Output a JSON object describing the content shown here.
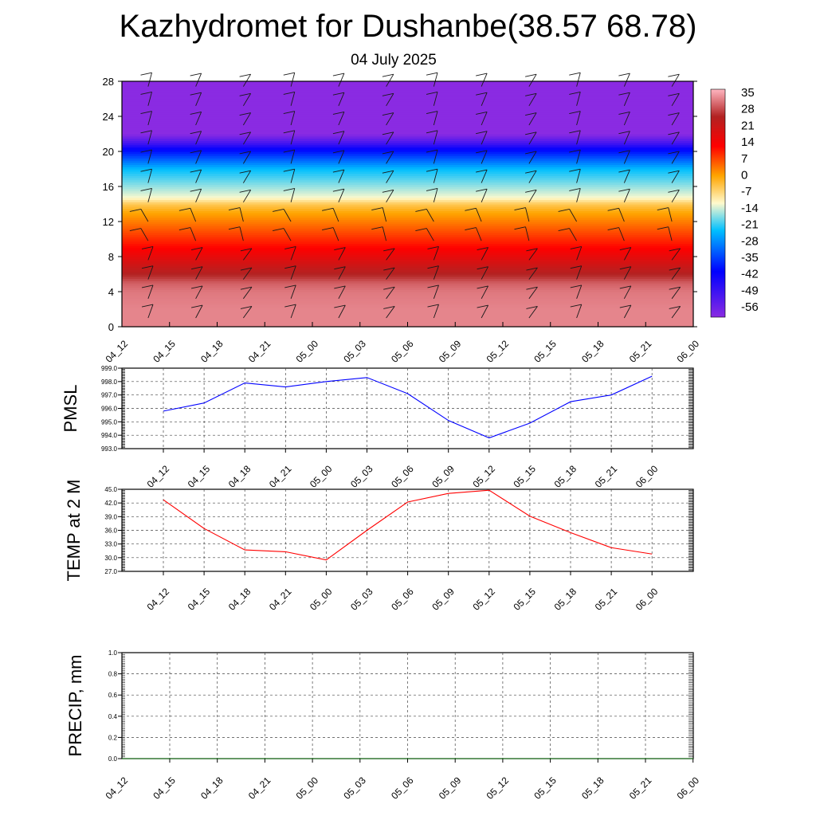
{
  "title": "Kazhydromet for Dushanbe(38.57 68.78)",
  "subtitle": "04 July 2025",
  "chart_data": [
    {
      "type": "heatmap",
      "description_of_axes": "time vs height",
      "x_categories": [
        "04_12",
        "04_15",
        "04_18",
        "04_21",
        "05_00",
        "05_03",
        "05_06",
        "05_09",
        "05_12",
        "05_15",
        "05_18",
        "05_21",
        "06_00"
      ],
      "y_ticks": [
        0,
        4,
        8,
        12,
        16,
        20,
        24,
        28
      ],
      "ylim": [
        0,
        28
      ],
      "colorbar_ticks": [
        35,
        28,
        21,
        14,
        7,
        0,
        -7,
        -14,
        -21,
        -28,
        -35,
        -42,
        -49,
        -56
      ],
      "colorbar_range": [
        -60,
        40
      ],
      "temperature_profile": {
        "heights": [
          0,
          2,
          4,
          5,
          6,
          7,
          8,
          9,
          10,
          11,
          12,
          13,
          14,
          15,
          16,
          17,
          18,
          19,
          20,
          21,
          22,
          28
        ],
        "values": [
          36,
          36,
          35,
          33,
          28,
          24,
          20,
          16,
          12,
          8,
          4,
          0,
          -4,
          -12,
          -18,
          -24,
          -30,
          -38,
          -46,
          -54,
          -60,
          -60
        ]
      },
      "colors": {
        "low": "#8a2be2",
        "mid_low": "#0000ff",
        "mid": "#00bfff",
        "neutral": "#fffacd",
        "warm": "#ffa500",
        "hot": "#ff0000",
        "very_hot": "#b22222",
        "max": "#ffb6c1"
      }
    },
    {
      "type": "line",
      "ylabel": "PMSL",
      "x": [
        "04_12",
        "04_15",
        "04_18",
        "04_21",
        "05_00",
        "05_03",
        "05_06",
        "05_09",
        "05_12",
        "05_15",
        "05_18",
        "05_21",
        "06_00"
      ],
      "values": [
        995.8,
        996.4,
        997.9,
        997.6,
        998.0,
        998.3,
        997.1,
        995.1,
        993.8,
        994.9,
        996.5,
        997.0,
        998.4
      ],
      "ylim": [
        993.0,
        999.0
      ],
      "y_ticks": [
        "993.0",
        "994.0",
        "995.0",
        "996.0",
        "997.0",
        "998.0",
        "999.0"
      ],
      "color": "#0000ff"
    },
    {
      "type": "line",
      "ylabel": "TEMP at 2 M",
      "x": [
        "04_12",
        "04_15",
        "04_18",
        "04_21",
        "05_00",
        "05_03",
        "05_06",
        "05_09",
        "05_12",
        "05_15",
        "05_18",
        "05_21",
        "06_00"
      ],
      "values": [
        42.7,
        36.4,
        31.7,
        31.3,
        29.5,
        36.0,
        42.2,
        44.1,
        44.8,
        39.1,
        35.5,
        32.2,
        30.8
      ],
      "ylim": [
        27.0,
        45.0
      ],
      "y_ticks": [
        "27.0",
        "30.0",
        "33.0",
        "36.0",
        "39.0",
        "42.0",
        "45.0"
      ],
      "color": "#ff0000"
    },
    {
      "type": "line",
      "ylabel": "PRECIP, mm",
      "x": [
        "04_12",
        "04_15",
        "04_18",
        "04_21",
        "05_00",
        "05_03",
        "05_06",
        "05_09",
        "05_12",
        "05_15",
        "05_18",
        "05_21",
        "06_00"
      ],
      "values": [
        0,
        0,
        0,
        0,
        0,
        0,
        0,
        0,
        0,
        0,
        0,
        0,
        0
      ],
      "ylim": [
        0.0,
        1.0
      ],
      "y_ticks": [
        "0.0",
        "0.2",
        "0.4",
        "0.6",
        "0.8",
        "1.0"
      ],
      "color": "#006400"
    }
  ]
}
